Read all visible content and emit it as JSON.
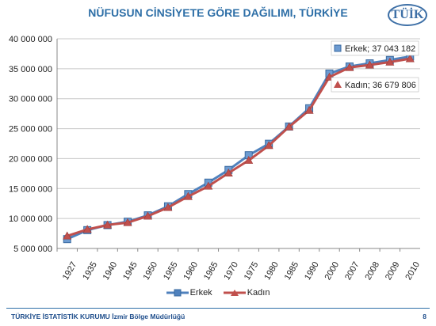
{
  "header": {
    "title": "NÜFUSUN CİNSİYETE GÖRE DAĞILIMI, TÜRKİYE",
    "logo_text": "TÜİK"
  },
  "footer": {
    "org": "TÜRKİYE İSTATİSTİK KURUMU",
    "office": "İzmir Bölge Müdürlüğü",
    "page": "8"
  },
  "colors": {
    "erkek": "#4f81bd",
    "kadin": "#c0504d",
    "grid": "#c8c8c8"
  },
  "chart_data": {
    "type": "line",
    "title": "NÜFUSUN CİNSİYETE GÖRE DAĞILIMI, TÜRKİYE",
    "categories": [
      "1927",
      "1935",
      "1940",
      "1945",
      "1950",
      "1955",
      "1960",
      "1965",
      "1970",
      "1975",
      "1980",
      "1985",
      "1990",
      "2000",
      "2007",
      "2008",
      "2009",
      "2010"
    ],
    "series": [
      {
        "name": "Erkek",
        "values": [
          6560000,
          8060000,
          8900000,
          9470000,
          10530000,
          12040000,
          14080000,
          15990000,
          18110000,
          20560000,
          22480000,
          25360000,
          28400000,
          34200000,
          35380000,
          35900000,
          36460000,
          37043182
        ]
      },
      {
        "name": "Kadın",
        "values": [
          7090000,
          8180000,
          8920000,
          9310000,
          10400000,
          11840000,
          13680000,
          15400000,
          17590000,
          19710000,
          22180000,
          25300000,
          28060000,
          33600000,
          35210000,
          35620000,
          36110000,
          36679806
        ]
      }
    ],
    "annotations": [
      {
        "series": "Erkek",
        "category": "2010",
        "text": "Erkek; 37 043 182"
      },
      {
        "series": "Kadın",
        "category": "2010",
        "text": "Kadın; 36 679 806"
      }
    ],
    "y_ticks": [
      5000000,
      10000000,
      15000000,
      20000000,
      25000000,
      30000000,
      35000000,
      40000000
    ],
    "y_tick_labels": [
      "5 000 000",
      "10 000 000",
      "15 000 000",
      "20 000 000",
      "25 000 000",
      "30 000 000",
      "35 000 000",
      "40 000 000"
    ],
    "ylim": [
      5000000,
      40000000
    ],
    "grid": true,
    "legend": "bottom",
    "xlabel": "",
    "ylabel": ""
  }
}
